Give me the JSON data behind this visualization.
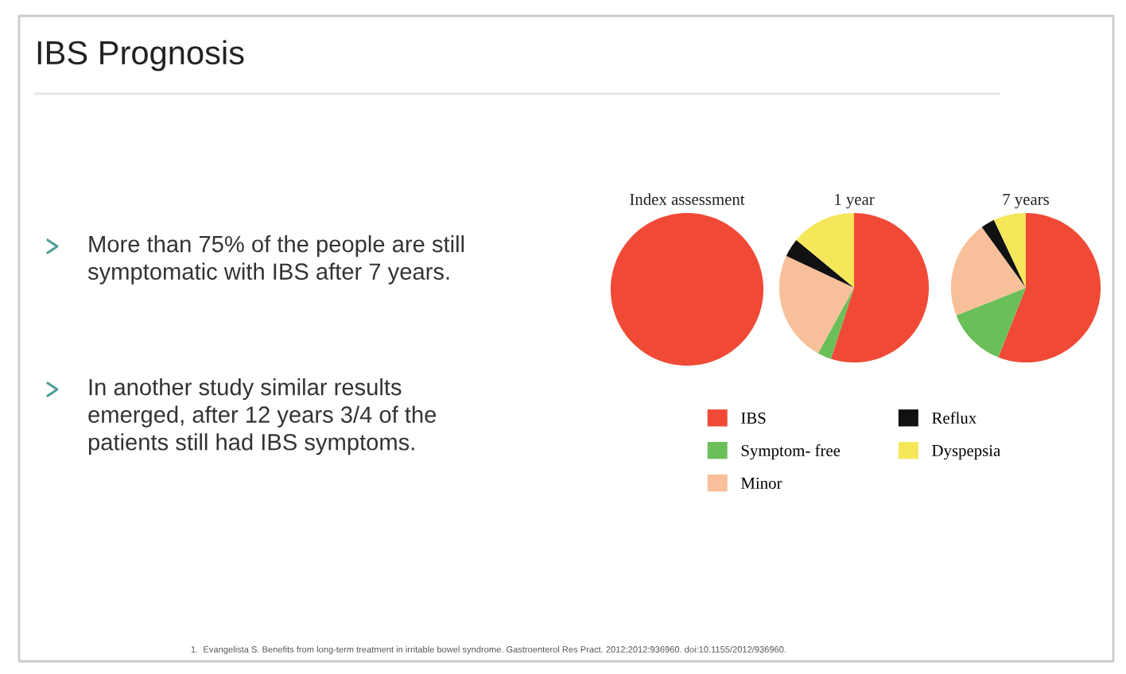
{
  "chart_data": [
    {
      "type": "pie",
      "title": "Index assessment",
      "categories": [
        null
      ],
      "values": [
        100
      ],
      "colors": [
        "#f04a37"
      ],
      "annotations": [
        "IBS Prognosis",
        "More than 75% of the people are still\nsymptomatic with IBS after 7 years.",
        "In another study similar results\nemerged, after 12 years 3/4 of the\npatients still had IBS symptoms.",
        "1.  Evangelista S. Benefits from long-term treatment in irritable bowel syndrome. Gastroenterol Res Pract. 2012;2012:936960. doi:10.1155/2012/936960."
      ]
    },
    {
      "type": "pie",
      "title": "1 year",
      "categories": [
        "IBS",
        "Symptom- free",
        "Minor",
        "Reflux",
        "Dyspepsia"
      ],
      "values": [
        55,
        3,
        24,
        4,
        14
      ],
      "colors": [
        "#f04a37",
        "#6bbf59",
        "#f8c09a",
        "#111111",
        "#f5e65a"
      ],
      "legend": "bottom"
    },
    {
      "type": "pie",
      "title": "7 years",
      "categories": [
        null,
        null,
        null,
        null,
        null
      ],
      "values": [
        56,
        13,
        21,
        3,
        7
      ],
      "colors": [
        "#f04a37",
        "#6bbf59",
        "#f8c09a",
        "#111111",
        "#f5e65a"
      ]
    }
  ]
}
